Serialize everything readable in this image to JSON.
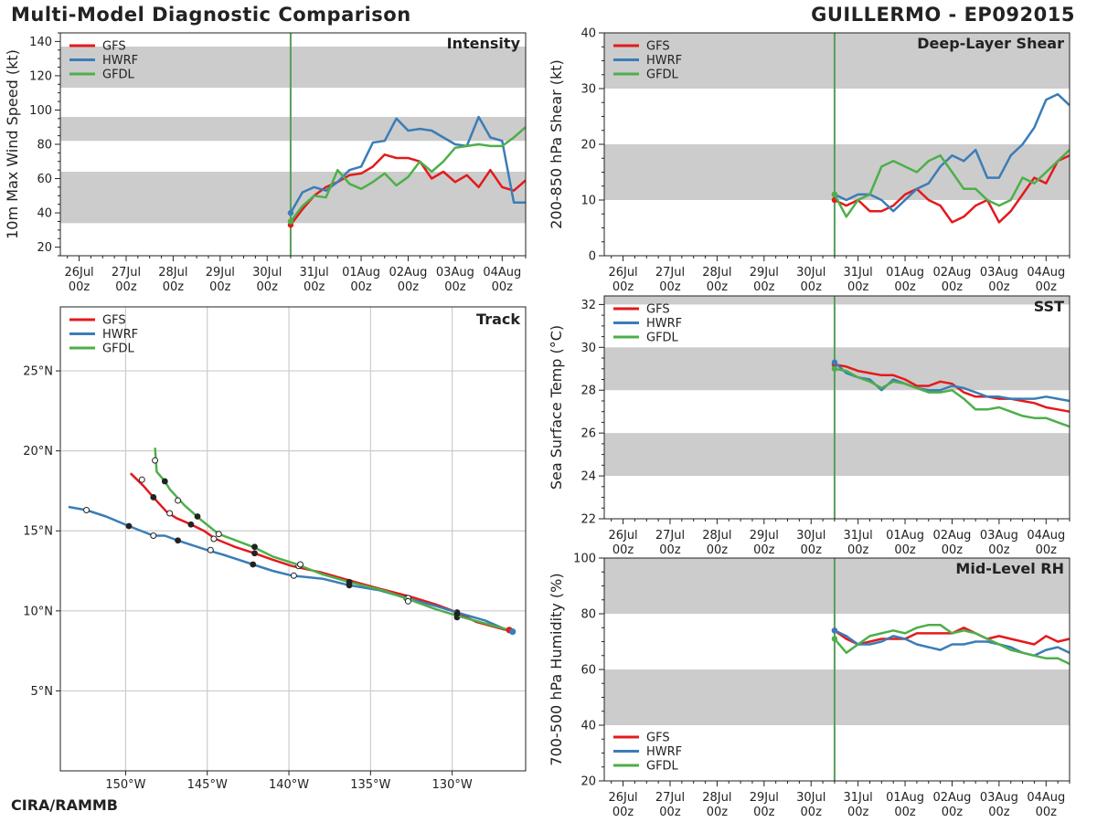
{
  "header": {
    "title": "Multi-Model Diagnostic Comparison",
    "storm": "GUILLERMO - EP092015",
    "credit": "CIRA/RAMMB"
  },
  "colors": {
    "GFS": "#e31a1c",
    "HWRF": "#3a7db8",
    "GFDL": "#4daf4a",
    "init_line": "#5a9e5a",
    "band": "#cccccc",
    "grid": "#cccccc"
  },
  "time_axis": {
    "labels": [
      "26Jul\n00z",
      "27Jul\n00z",
      "28Jul\n00z",
      "29Jul\n00z",
      "30Jul\n00z",
      "31Jul\n00z",
      "01Aug\n00z",
      "02Aug\n00z",
      "03Aug\n00z",
      "04Aug\n00z"
    ],
    "label_days": [
      0,
      1,
      2,
      3,
      4,
      5,
      6,
      7,
      8,
      9
    ],
    "range_days": [
      -0.4,
      9.5
    ],
    "init_day": 4.5
  },
  "chart_data": [
    {
      "id": "intensity",
      "type": "line",
      "title": "Intensity",
      "ylabel": "10m Max Wind Speed (kt)",
      "ylim": [
        15,
        145
      ],
      "yticks": [
        20,
        40,
        60,
        80,
        100,
        120,
        140
      ],
      "bands": [
        [
          34,
          64
        ],
        [
          82,
          96
        ],
        [
          113,
          137
        ]
      ],
      "legend": "top-left",
      "series": [
        {
          "name": "GFS",
          "x": [
            4.5,
            4.75,
            5,
            5.25,
            5.5,
            5.75,
            6,
            6.25,
            6.5,
            6.75,
            7,
            7.25,
            7.5,
            7.75,
            8,
            8.25,
            8.5,
            8.75,
            9,
            9.25,
            9.5
          ],
          "y": [
            33,
            42,
            50,
            55,
            58,
            62,
            63,
            67,
            74,
            72,
            72,
            70,
            60,
            64,
            58,
            62,
            55,
            65,
            55,
            53,
            59
          ]
        },
        {
          "name": "HWRF",
          "x": [
            4.5,
            4.75,
            5,
            5.25,
            5.5,
            5.75,
            6,
            6.25,
            6.5,
            6.75,
            7,
            7.25,
            7.5,
            7.75,
            8,
            8.25,
            8.5,
            8.75,
            9,
            9.25,
            9.5
          ],
          "y": [
            40,
            52,
            55,
            53,
            58,
            65,
            67,
            81,
            82,
            95,
            88,
            89,
            88,
            84,
            80,
            79,
            96,
            84,
            82,
            46,
            46
          ]
        },
        {
          "name": "GFDL",
          "x": [
            4.5,
            4.75,
            5,
            5.25,
            5.5,
            5.75,
            6,
            6.25,
            6.5,
            6.75,
            7,
            7.25,
            7.5,
            7.75,
            8,
            8.25,
            8.5,
            8.75,
            9,
            9.25,
            9.5
          ],
          "y": [
            35,
            44,
            50,
            49,
            65,
            57,
            54,
            58,
            63,
            56,
            61,
            70,
            64,
            70,
            78,
            79,
            80,
            79,
            79,
            84,
            90
          ]
        }
      ]
    },
    {
      "id": "shear",
      "type": "line",
      "title": "Deep-Layer Shear",
      "ylabel": "200-850 hPa Shear (kt)",
      "ylim": [
        0,
        40
      ],
      "yticks": [
        0,
        10,
        20,
        30,
        40
      ],
      "bands": [
        [
          10,
          20
        ],
        [
          30,
          40
        ]
      ],
      "legend": "top-left",
      "series": [
        {
          "name": "GFS",
          "x": [
            4.5,
            4.75,
            5,
            5.25,
            5.5,
            5.75,
            6,
            6.25,
            6.5,
            6.75,
            7,
            7.25,
            7.5,
            7.75,
            8,
            8.25,
            8.5,
            8.75,
            9,
            9.25,
            9.5
          ],
          "y": [
            10,
            9,
            10,
            8,
            8,
            9,
            11,
            12,
            10,
            9,
            6,
            7,
            9,
            10,
            6,
            8,
            11,
            14,
            13,
            17,
            18
          ]
        },
        {
          "name": "HWRF",
          "x": [
            4.5,
            4.75,
            5,
            5.25,
            5.5,
            5.75,
            6,
            6.25,
            6.5,
            6.75,
            7,
            7.25,
            7.5,
            7.75,
            8,
            8.25,
            8.5,
            8.75,
            9,
            9.25,
            9.5
          ],
          "y": [
            11,
            10,
            11,
            11,
            10,
            8,
            10,
            12,
            13,
            16,
            18,
            17,
            19,
            14,
            14,
            18,
            20,
            23,
            28,
            29,
            27
          ]
        },
        {
          "name": "GFDL",
          "x": [
            4.5,
            4.75,
            5,
            5.25,
            5.5,
            5.75,
            6,
            6.25,
            6.5,
            6.75,
            7,
            7.25,
            7.5,
            7.75,
            8,
            8.25,
            8.5,
            8.75,
            9,
            9.25,
            9.5
          ],
          "y": [
            11,
            7,
            10,
            11,
            16,
            17,
            16,
            15,
            17,
            18,
            15,
            12,
            12,
            10,
            9,
            10,
            14,
            13,
            15,
            17,
            19
          ]
        }
      ]
    },
    {
      "id": "sst",
      "type": "line",
      "title": "SST",
      "ylabel": "Sea Surface Temp (°C)",
      "ylim": [
        22,
        32.4
      ],
      "yticks": [
        22,
        24,
        26,
        28,
        30,
        32
      ],
      "bands": [
        [
          24,
          26
        ],
        [
          28,
          30
        ],
        [
          32,
          32.4
        ]
      ],
      "legend": "top-left",
      "series": [
        {
          "name": "GFS",
          "x": [
            4.5,
            4.75,
            5,
            5.25,
            5.5,
            5.75,
            6,
            6.25,
            6.5,
            6.75,
            7,
            7.25,
            7.5,
            7.75,
            8,
            8.25,
            8.5,
            8.75,
            9,
            9.25,
            9.5
          ],
          "y": [
            29.2,
            29.1,
            28.9,
            28.8,
            28.7,
            28.7,
            28.5,
            28.2,
            28.2,
            28.4,
            28.3,
            27.9,
            27.7,
            27.7,
            27.6,
            27.6,
            27.5,
            27.4,
            27.2,
            27.1,
            27.0
          ]
        },
        {
          "name": "HWRF",
          "x": [
            4.5,
            4.75,
            5,
            5.25,
            5.5,
            5.75,
            6,
            6.25,
            6.5,
            6.75,
            7,
            7.25,
            7.5,
            7.75,
            8,
            8.25,
            8.5,
            8.75,
            9,
            9.25,
            9.5
          ],
          "y": [
            29.3,
            28.8,
            28.6,
            28.5,
            28.0,
            28.5,
            28.3,
            28.1,
            28.0,
            28.0,
            28.2,
            28.1,
            27.9,
            27.7,
            27.7,
            27.6,
            27.6,
            27.6,
            27.7,
            27.6,
            27.5
          ]
        },
        {
          "name": "GFDL",
          "x": [
            4.5,
            4.75,
            5,
            5.25,
            5.5,
            5.75,
            6,
            6.25,
            6.5,
            6.75,
            7,
            7.25,
            7.5,
            7.75,
            8,
            8.25,
            8.5,
            8.75,
            9,
            9.25,
            9.5
          ],
          "y": [
            29.0,
            28.9,
            28.6,
            28.4,
            28.1,
            28.4,
            28.3,
            28.1,
            27.9,
            27.9,
            28.0,
            27.6,
            27.1,
            27.1,
            27.2,
            27.0,
            26.8,
            26.7,
            26.7,
            26.5,
            26.3
          ]
        }
      ]
    },
    {
      "id": "rh",
      "type": "line",
      "title": "Mid-Level RH",
      "ylabel": "700-500 hPa Humidity (%)",
      "ylim": [
        20,
        100
      ],
      "yticks": [
        20,
        40,
        60,
        80,
        100
      ],
      "bands": [
        [
          40,
          60
        ],
        [
          80,
          100
        ]
      ],
      "legend": "bottom-left",
      "series": [
        {
          "name": "GFS",
          "x": [
            4.5,
            4.75,
            5,
            5.25,
            5.5,
            5.75,
            6,
            6.25,
            6.5,
            6.75,
            7,
            7.25,
            7.5,
            7.75,
            8,
            8.25,
            8.5,
            8.75,
            9,
            9.25,
            9.5
          ],
          "y": [
            74,
            71,
            69,
            70,
            71,
            71,
            71,
            73,
            73,
            73,
            73,
            75,
            73,
            71,
            72,
            71,
            70,
            69,
            72,
            70,
            71
          ]
        },
        {
          "name": "HWRF",
          "x": [
            4.5,
            4.75,
            5,
            5.25,
            5.5,
            5.75,
            6,
            6.25,
            6.5,
            6.75,
            7,
            7.25,
            7.5,
            7.75,
            8,
            8.25,
            8.5,
            8.75,
            9,
            9.25,
            9.5
          ],
          "y": [
            74,
            72,
            69,
            69,
            70,
            72,
            71,
            69,
            68,
            67,
            69,
            69,
            70,
            70,
            69,
            68,
            66,
            65,
            67,
            68,
            66
          ]
        },
        {
          "name": "GFDL",
          "x": [
            4.5,
            4.75,
            5,
            5.25,
            5.5,
            5.75,
            6,
            6.25,
            6.5,
            6.75,
            7,
            7.25,
            7.5,
            7.75,
            8,
            8.25,
            8.5,
            8.75,
            9,
            9.25,
            9.5
          ],
          "y": [
            71,
            66,
            69,
            72,
            73,
            74,
            73,
            75,
            76,
            76,
            73,
            74,
            73,
            71,
            69,
            67,
            66,
            65,
            64,
            64,
            62
          ]
        }
      ]
    },
    {
      "id": "track",
      "type": "line",
      "title": "Track",
      "xlim_lon": [
        -154,
        -125.5
      ],
      "ylim_lat": [
        0,
        29
      ],
      "xticks": [
        -150,
        -145,
        -140,
        -135,
        -130
      ],
      "xticklabels": [
        "150°W",
        "145°W",
        "140°W",
        "135°W",
        "130°W"
      ],
      "yticks": [
        5,
        10,
        15,
        20,
        25
      ],
      "yticklabels": [
        "5°N",
        "10°N",
        "15°N",
        "20°N",
        "25°N"
      ],
      "legend": "top-left",
      "series": [
        {
          "name": "GFS",
          "lon": [
            -126.7,
            -128.5,
            -129.7,
            -131,
            -132.6,
            -134.5,
            -136.3,
            -138,
            -139.8,
            -141,
            -142.1,
            -143.3,
            -144.5,
            -145.2,
            -146,
            -146.9,
            -147.5,
            -148.3,
            -148.9,
            -149.7
          ],
          "lat": [
            8.8,
            9.3,
            9.9,
            10.4,
            10.9,
            11.4,
            11.9,
            12.4,
            12.8,
            13.2,
            13.6,
            14,
            14.5,
            15,
            15.4,
            15.8,
            16.2,
            17.1,
            17.8,
            18.6
          ],
          "filled_markers": [
            [
              -129.7,
              9.9
            ],
            [
              -136.3,
              11.8
            ],
            [
              -142.1,
              13.6
            ],
            [
              -146,
              15.4
            ],
            [
              -148.3,
              17.1
            ]
          ],
          "open_markers": [
            [
              -132.8,
              10.8
            ],
            [
              -139.4,
              12.8
            ],
            [
              -144.6,
              14.5
            ],
            [
              -147.3,
              16.1
            ],
            [
              -149,
              18.2
            ]
          ]
        },
        {
          "name": "HWRF",
          "lon": [
            -126.4,
            -128,
            -129.7,
            -131,
            -132.8,
            -134.5,
            -136.3,
            -137.9,
            -139.8,
            -141,
            -142.2,
            -144,
            -145,
            -146.8,
            -147.6,
            -148.3,
            -149.8,
            -151.2,
            -152.4,
            -153.5
          ],
          "lat": [
            8.7,
            9.4,
            9.9,
            10.3,
            10.8,
            11.3,
            11.6,
            12,
            12.2,
            12.5,
            12.9,
            13.5,
            13.8,
            14.4,
            14.7,
            14.7,
            15.3,
            15.9,
            16.3,
            16.5
          ],
          "filled_markers": [
            [
              -129.7,
              9.6
            ],
            [
              -136.3,
              11.6
            ],
            [
              -142.2,
              12.9
            ],
            [
              -146.8,
              14.4
            ],
            [
              -149.8,
              15.3
            ]
          ],
          "open_markers": [
            [
              -132.7,
              10.8
            ],
            [
              -139.7,
              12.2
            ],
            [
              -144.8,
              13.8
            ],
            [
              -148.3,
              14.7
            ],
            [
              -152.4,
              16.3
            ]
          ]
        },
        {
          "name": "GFDL",
          "lon": [
            -126.5,
            -128.3,
            -129.7,
            -131,
            -132.6,
            -134.3,
            -136.3,
            -138,
            -139.5,
            -141,
            -142.2,
            -143.5,
            -144.3,
            -145.4,
            -146.4,
            -147.3,
            -147.6,
            -148.1,
            -148.2
          ],
          "lat": [
            8.8,
            9.3,
            9.7,
            10.1,
            10.7,
            11.3,
            11.8,
            12.3,
            12.9,
            13.4,
            14.0,
            14.5,
            14.8,
            15.7,
            16.6,
            17.6,
            18.1,
            18.7,
            20.2
          ],
          "filled_markers": [
            [
              -129.7,
              9.8
            ],
            [
              -136.3,
              11.8
            ],
            [
              -142.1,
              14
            ],
            [
              -145.6,
              15.9
            ],
            [
              -147.6,
              18.1
            ]
          ],
          "open_markers": [
            [
              -132.7,
              10.6
            ],
            [
              -139.3,
              12.9
            ],
            [
              -144.3,
              14.8
            ],
            [
              -146.8,
              16.9
            ],
            [
              -148.2,
              19.4
            ]
          ]
        }
      ]
    }
  ]
}
